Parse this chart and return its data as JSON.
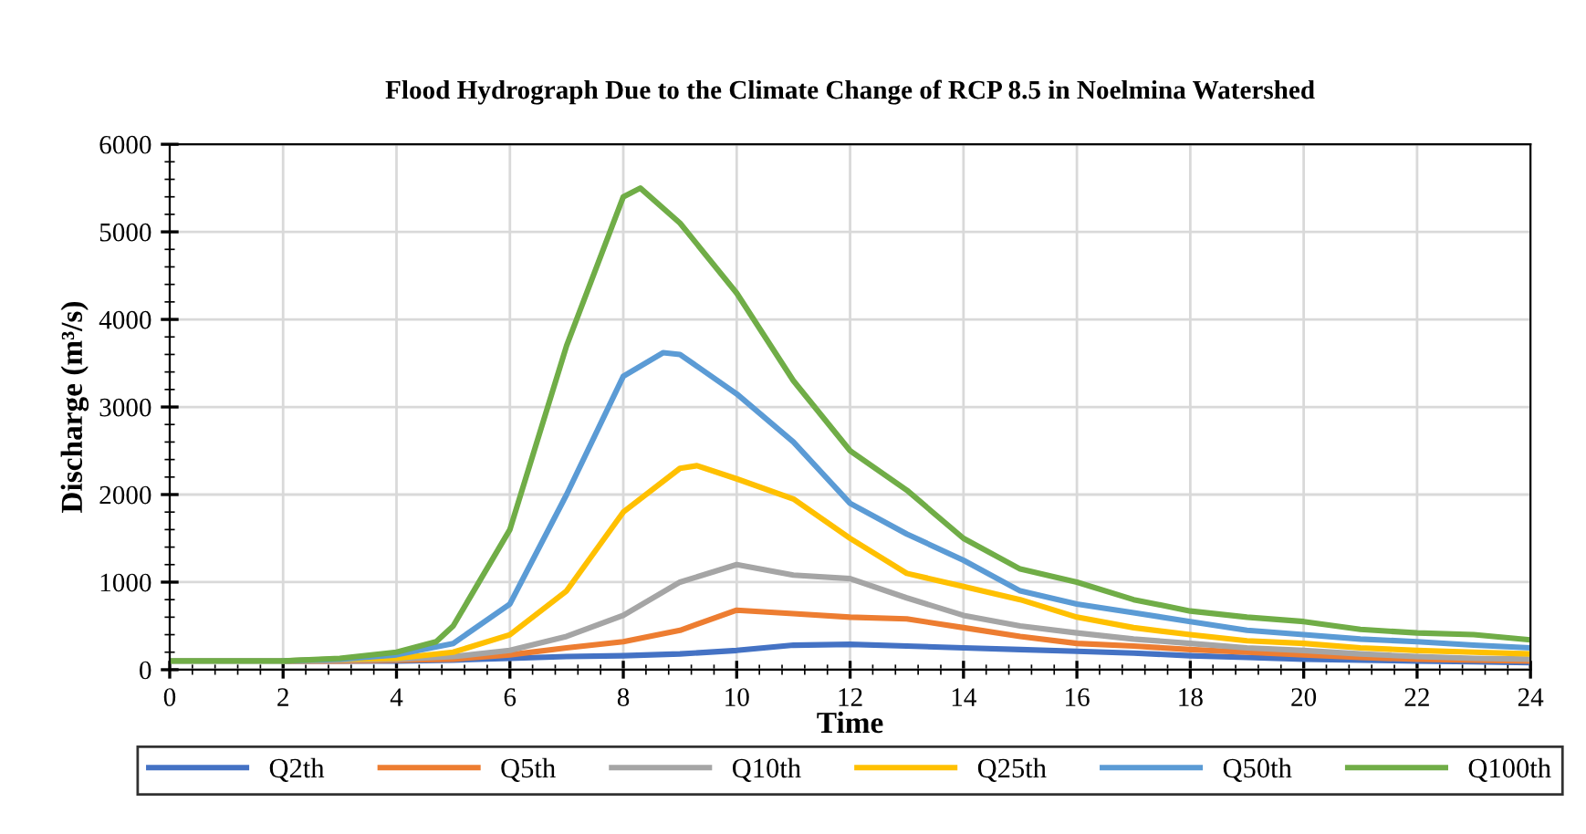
{
  "chart_data": {
    "type": "line",
    "title": "Flood Hydrograph Due to the Climate Change of RCP 8.5 in Noelmina Watershed",
    "xlabel": "Time",
    "ylabel": "Discharge (m³/s)",
    "xlim": [
      0,
      24
    ],
    "xticks": [
      0,
      2,
      4,
      6,
      8,
      10,
      12,
      14,
      16,
      18,
      20,
      22,
      24
    ],
    "ylim": [
      0,
      6000
    ],
    "yticks": [
      0,
      1000,
      2000,
      3000,
      4000,
      5000,
      6000
    ],
    "grid": true,
    "legend": "bottom",
    "marker": "none",
    "line_style": "solid",
    "series": [
      {
        "name": "Q2th",
        "color": "#4472c4",
        "x": [
          2,
          3,
          4,
          5,
          6,
          7,
          8,
          9,
          10,
          11,
          12,
          13,
          14,
          15,
          16,
          17,
          18,
          19,
          20,
          21,
          22,
          23,
          24
        ],
        "values": [
          100,
          100,
          100,
          110,
          130,
          150,
          160,
          180,
          220,
          280,
          290,
          270,
          250,
          230,
          210,
          190,
          160,
          140,
          120,
          110,
          100,
          90,
          80
        ]
      },
      {
        "name": "Q5th",
        "color": "#ed7d31",
        "x": [
          2,
          3,
          4,
          5,
          6,
          7,
          8,
          9,
          10,
          11,
          12,
          13,
          14,
          15,
          16,
          17,
          18,
          19,
          20,
          21,
          22,
          23,
          24
        ],
        "values": [
          100,
          100,
          110,
          120,
          170,
          250,
          320,
          450,
          680,
          640,
          600,
          580,
          480,
          380,
          300,
          270,
          230,
          200,
          170,
          140,
          120,
          110,
          100
        ]
      },
      {
        "name": "Q10th",
        "color": "#a5a5a5",
        "x": [
          0,
          1,
          2,
          3,
          4,
          5,
          6,
          7,
          8,
          9,
          10,
          11,
          12,
          13,
          14,
          15,
          16,
          17,
          18,
          19,
          20,
          21,
          22,
          23,
          24
        ],
        "values": [
          100,
          100,
          100,
          110,
          120,
          150,
          220,
          380,
          620,
          1000,
          1200,
          1080,
          1040,
          820,
          620,
          500,
          420,
          350,
          300,
          250,
          220,
          180,
          150,
          130,
          120
        ]
      },
      {
        "name": "Q25th",
        "color": "#ffc000",
        "x": [
          2,
          3,
          4,
          5,
          6,
          7,
          8,
          9,
          9.3,
          10,
          11,
          12,
          13,
          14,
          15,
          16,
          17,
          18,
          19,
          20,
          21,
          22,
          23,
          24
        ],
        "values": [
          100,
          120,
          130,
          200,
          400,
          900,
          1800,
          2300,
          2330,
          2180,
          1950,
          1500,
          1100,
          950,
          800,
          600,
          480,
          400,
          330,
          300,
          250,
          220,
          200,
          180
        ]
      },
      {
        "name": "Q50th",
        "color": "#5b9bd5",
        "x": [
          2,
          3,
          4,
          5,
          6,
          7,
          8,
          8.7,
          9,
          10,
          11,
          12,
          13,
          14,
          15,
          16,
          17,
          18,
          19,
          20,
          21,
          22,
          23,
          24
        ],
        "values": [
          100,
          120,
          170,
          300,
          750,
          2000,
          3350,
          3620,
          3600,
          3150,
          2600,
          1900,
          1550,
          1250,
          900,
          750,
          650,
          550,
          450,
          400,
          350,
          320,
          280,
          250
        ]
      },
      {
        "name": "Q100th",
        "color": "#70ad47",
        "x": [
          0,
          1,
          2,
          3,
          4,
          4.7,
          5,
          6,
          7,
          8,
          8.3,
          9,
          10,
          11,
          12,
          13,
          14,
          15,
          16,
          17,
          18,
          19,
          20,
          21,
          22,
          23,
          24
        ],
        "values": [
          100,
          100,
          100,
          130,
          200,
          320,
          500,
          1600,
          3700,
          5400,
          5500,
          5100,
          4300,
          3300,
          2500,
          2050,
          1500,
          1150,
          1000,
          800,
          670,
          600,
          550,
          460,
          420,
          400,
          340
        ]
      }
    ]
  }
}
